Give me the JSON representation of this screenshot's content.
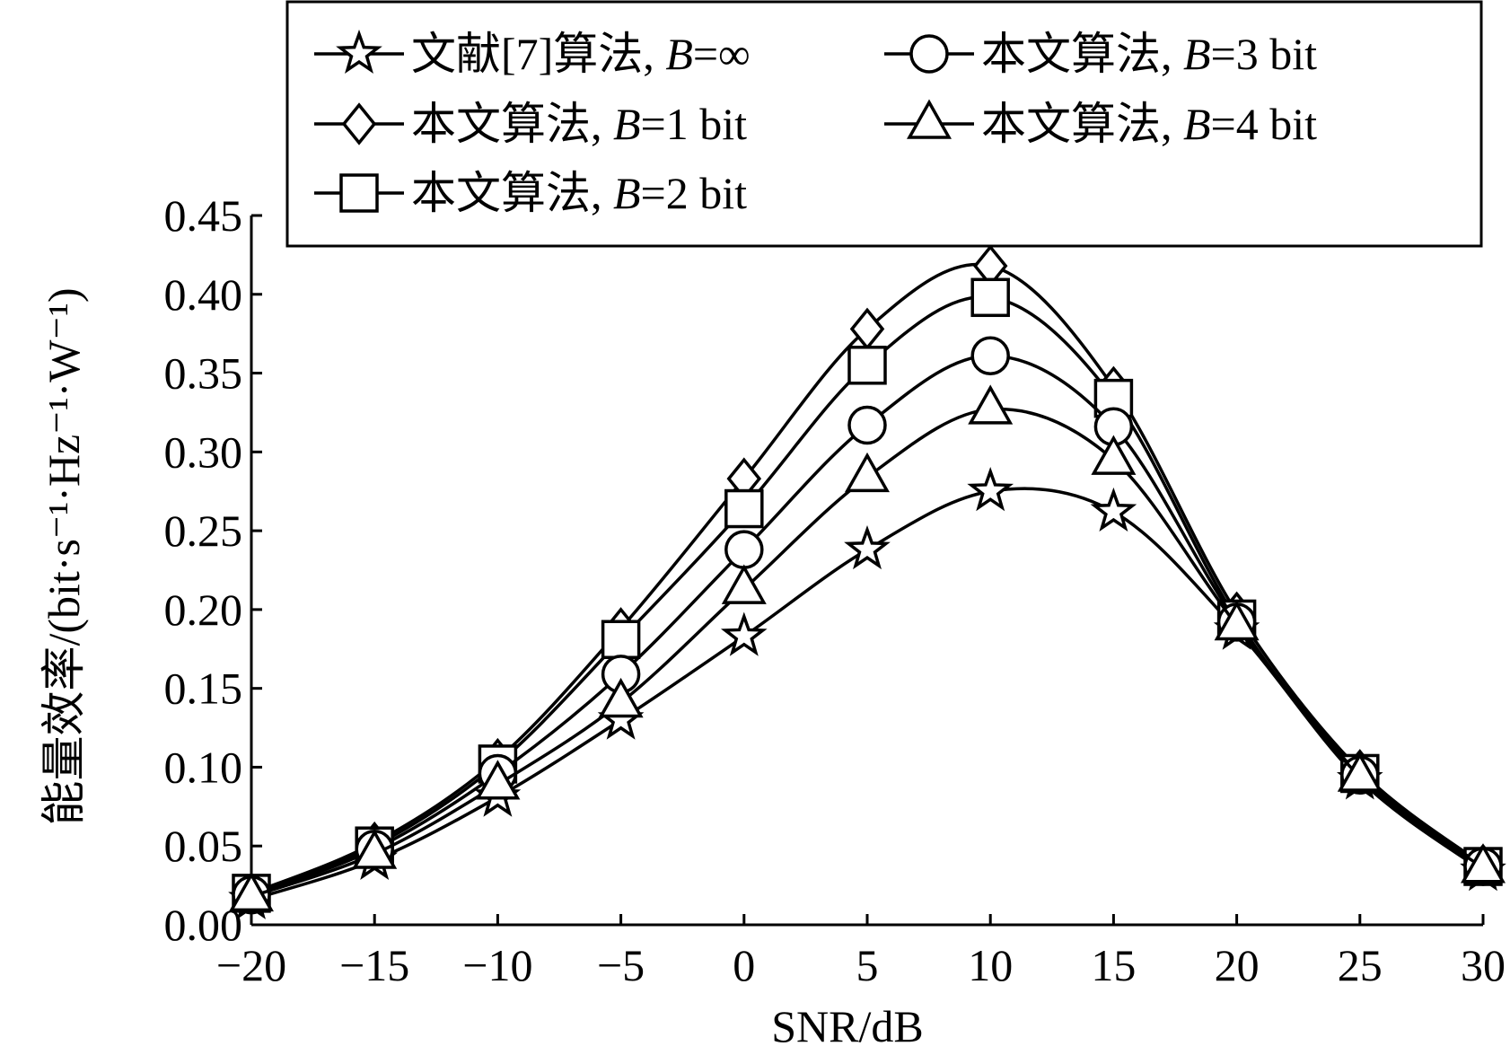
{
  "chart_data": {
    "type": "line",
    "xlabel": "SNR/dB",
    "ylabel": "能量效率/(bit·s⁻¹·Hz⁻¹·W⁻¹)",
    "xlim": [
      -20,
      30
    ],
    "ylim": [
      0,
      0.45
    ],
    "x_ticks": [
      -20,
      -15,
      -10,
      -5,
      0,
      5,
      10,
      15,
      20,
      25,
      30
    ],
    "x_tick_labels": [
      "−20",
      "−15",
      "−10",
      "−5",
      "0",
      "5",
      "10",
      "15",
      "20",
      "25",
      "30"
    ],
    "y_ticks": [
      0,
      0.05,
      0.1,
      0.15,
      0.2,
      0.25,
      0.3,
      0.35,
      0.4,
      0.45
    ],
    "y_tick_labels": [
      "0.00",
      "0.05",
      "0.10",
      "0.15",
      "0.20",
      "0.25",
      "0.30",
      "0.35",
      "0.40",
      "0.45"
    ],
    "grid": false,
    "legend_position": "top",
    "x": [
      -20,
      -15,
      -10,
      -5,
      0,
      5,
      10,
      15,
      20,
      25,
      30
    ],
    "series": [
      {
        "name": "文献[7]算法, B=∞",
        "prefix": "文献[7]算法, ",
        "var": "B",
        "suffix": "=∞",
        "marker": "star",
        "values": [
          0.016,
          0.041,
          0.081,
          0.13,
          0.183,
          0.238,
          0.275,
          0.262,
          0.187,
          0.092,
          0.034
        ]
      },
      {
        "name": "本文算法, B=1 bit",
        "prefix": "本文算法, ",
        "var": "B",
        "suffix": "=1 bit",
        "marker": "diamond",
        "values": [
          0.02,
          0.052,
          0.105,
          0.188,
          0.283,
          0.378,
          0.418,
          0.341,
          0.198,
          0.098,
          0.038
        ]
      },
      {
        "name": "本文算法, B=2 bit",
        "prefix": "本文算法, ",
        "var": "B",
        "suffix": "=2 bit",
        "marker": "square",
        "values": [
          0.02,
          0.05,
          0.102,
          0.181,
          0.264,
          0.355,
          0.398,
          0.334,
          0.194,
          0.096,
          0.037
        ]
      },
      {
        "name": "本文算法, B=3 bit",
        "prefix": "本文算法, ",
        "var": "B",
        "suffix": "=3 bit",
        "marker": "circle",
        "values": [
          0.019,
          0.048,
          0.096,
          0.159,
          0.238,
          0.317,
          0.361,
          0.316,
          0.192,
          0.095,
          0.037
        ]
      },
      {
        "name": "本文算法, B=4 bit",
        "prefix": "本文算法, ",
        "var": "B",
        "suffix": "=4 bit",
        "marker": "triangle",
        "values": [
          0.018,
          0.045,
          0.089,
          0.141,
          0.213,
          0.284,
          0.327,
          0.295,
          0.19,
          0.094,
          0.036
        ]
      }
    ]
  }
}
